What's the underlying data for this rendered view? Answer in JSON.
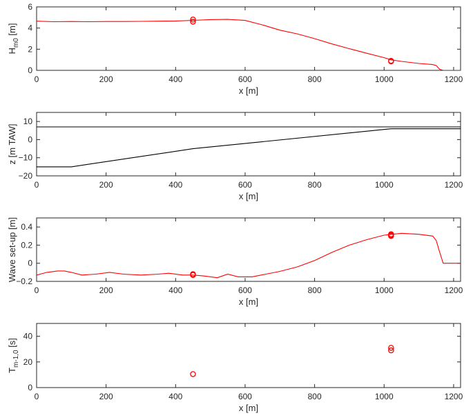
{
  "chart_data": [
    {
      "type": "line",
      "xlabel": "x [m]",
      "ylabel": "H",
      "ylabel_sub": "m0",
      "ylabel_unit": " [m]",
      "xlim": [
        0,
        1220
      ],
      "ylim": [
        0,
        6
      ],
      "xticks": [
        0,
        200,
        400,
        600,
        800,
        1000,
        1200
      ],
      "yticks": [
        0,
        2,
        4,
        6
      ],
      "series": [
        {
          "type": "line",
          "color": "#ff0000",
          "points": [
            [
              0,
              4.65
            ],
            [
              50,
              4.6
            ],
            [
              100,
              4.62
            ],
            [
              150,
              4.6
            ],
            [
              200,
              4.62
            ],
            [
              250,
              4.62
            ],
            [
              300,
              4.63
            ],
            [
              350,
              4.65
            ],
            [
              400,
              4.67
            ],
            [
              450,
              4.73
            ],
            [
              500,
              4.8
            ],
            [
              550,
              4.82
            ],
            [
              600,
              4.72
            ],
            [
              650,
              4.3
            ],
            [
              700,
              3.8
            ],
            [
              750,
              3.45
            ],
            [
              800,
              3.0
            ],
            [
              850,
              2.5
            ],
            [
              900,
              2.05
            ],
            [
              950,
              1.62
            ],
            [
              1000,
              1.2
            ],
            [
              1020,
              1.0
            ],
            [
              1050,
              0.85
            ],
            [
              1100,
              0.65
            ],
            [
              1140,
              0.55
            ],
            [
              1150,
              0.45
            ],
            [
              1160,
              0.1
            ],
            [
              1170,
              0.0
            ],
            [
              1220,
              0.0
            ]
          ]
        },
        {
          "type": "scatter",
          "color": "#ff0000",
          "points": [
            [
              450,
              4.8
            ],
            [
              450,
              4.6
            ],
            [
              1020,
              0.85
            ],
            [
              1020,
              0.9
            ]
          ]
        }
      ]
    },
    {
      "type": "line",
      "xlabel": "x [m]",
      "ylabel": "z [m TAW]",
      "xlim": [
        0,
        1220
      ],
      "ylim": [
        -20,
        15
      ],
      "xticks": [
        0,
        200,
        400,
        600,
        800,
        1000,
        1200
      ],
      "yticks": [
        -20,
        -10,
        0,
        10
      ],
      "series": [
        {
          "type": "line",
          "color": "#000000",
          "points": [
            [
              0,
              7
            ],
            [
              1220,
              7
            ]
          ]
        },
        {
          "type": "line",
          "color": "#000000",
          "points": [
            [
              0,
              -15
            ],
            [
              100,
              -15
            ],
            [
              450,
              -5
            ],
            [
              1020,
              6
            ],
            [
              1220,
              6
            ]
          ]
        }
      ]
    },
    {
      "type": "line",
      "xlabel": "x [m]",
      "ylabel": "Wave set-up [m]",
      "xlim": [
        0,
        1220
      ],
      "ylim": [
        -0.2,
        0.5
      ],
      "xticks": [
        0,
        200,
        400,
        600,
        800,
        1000,
        1200
      ],
      "yticks": [
        -0.2,
        0,
        0.2,
        0.4
      ],
      "series": [
        {
          "type": "line",
          "color": "#ff0000",
          "points": [
            [
              0,
              -0.13
            ],
            [
              30,
              -0.1
            ],
            [
              60,
              -0.085
            ],
            [
              80,
              -0.085
            ],
            [
              100,
              -0.1
            ],
            [
              130,
              -0.13
            ],
            [
              170,
              -0.12
            ],
            [
              210,
              -0.1
            ],
            [
              250,
              -0.12
            ],
            [
              300,
              -0.13
            ],
            [
              350,
              -0.12
            ],
            [
              380,
              -0.11
            ],
            [
              420,
              -0.13
            ],
            [
              450,
              -0.13
            ],
            [
              480,
              -0.14
            ],
            [
              520,
              -0.16
            ],
            [
              550,
              -0.12
            ],
            [
              580,
              -0.15
            ],
            [
              620,
              -0.15
            ],
            [
              660,
              -0.12
            ],
            [
              700,
              -0.09
            ],
            [
              750,
              -0.04
            ],
            [
              800,
              0.03
            ],
            [
              850,
              0.12
            ],
            [
              900,
              0.2
            ],
            [
              950,
              0.26
            ],
            [
              1000,
              0.31
            ],
            [
              1050,
              0.33
            ],
            [
              1100,
              0.32
            ],
            [
              1140,
              0.3
            ],
            [
              1150,
              0.25
            ],
            [
              1160,
              0.12
            ],
            [
              1170,
              0.0
            ],
            [
              1180,
              0.0
            ],
            [
              1220,
              0.0
            ]
          ]
        },
        {
          "type": "scatter",
          "color": "#ff0000",
          "points": [
            [
              450,
              -0.12
            ],
            [
              450,
              -0.13
            ],
            [
              1020,
              0.31
            ],
            [
              1020,
              0.32
            ],
            [
              1020,
              0.3
            ]
          ]
        }
      ]
    },
    {
      "type": "scatter",
      "xlabel": "x [m]",
      "ylabel": "T",
      "ylabel_sub": "m-1,0",
      "ylabel_unit": " [s]",
      "xlim": [
        0,
        1220
      ],
      "ylim": [
        0,
        50
      ],
      "xticks": [
        0,
        200,
        400,
        600,
        800,
        1000,
        1200
      ],
      "yticks": [
        0,
        20,
        40
      ],
      "series": [
        {
          "type": "scatter",
          "color": "#ff0000",
          "points": [
            [
              450,
              10.5
            ],
            [
              1020,
              29
            ],
            [
              1020,
              31
            ]
          ]
        }
      ]
    }
  ]
}
